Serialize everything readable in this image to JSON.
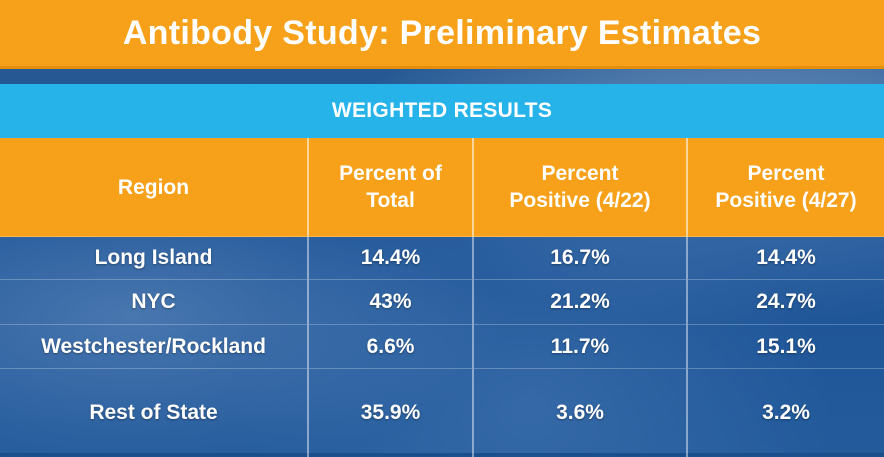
{
  "title": "Antibody Study: Preliminary Estimates",
  "subtitle": "WEIGHTED RESULTS",
  "colors": {
    "title_bar": "#f7a11a",
    "subtitle_bar": "#26b3ea",
    "text": "#ffffff"
  },
  "chart_data": {
    "type": "table",
    "title": "Antibody Study: Preliminary Estimates",
    "subtitle": "WEIGHTED RESULTS",
    "columns": [
      {
        "line1": "Region",
        "line2": ""
      },
      {
        "line1": "Percent of",
        "line2": "Total"
      },
      {
        "line1": "Percent",
        "line2": "Positive (4/22)"
      },
      {
        "line1": "Percent",
        "line2": "Positive (4/27)"
      }
    ],
    "rows": [
      [
        "Long Island",
        "14.4%",
        "16.7%",
        "14.4%"
      ],
      [
        "NYC",
        "43%",
        "21.2%",
        "24.7%"
      ],
      [
        "Westchester/Rockland",
        "6.6%",
        "11.7%",
        "15.1%"
      ],
      [
        "Rest of State",
        "35.9%",
        "3.6%",
        "3.2%"
      ]
    ]
  }
}
